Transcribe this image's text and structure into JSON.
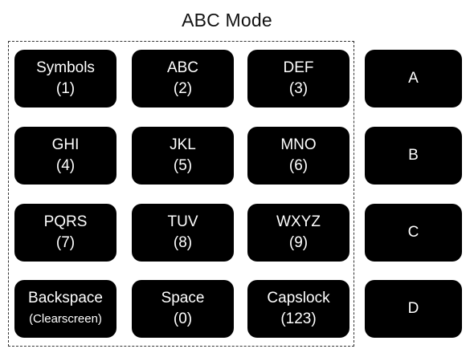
{
  "title": "ABC Mode",
  "keypad": [
    {
      "label": "Symbols",
      "sub": "(1)"
    },
    {
      "label": "ABC",
      "sub": "(2)"
    },
    {
      "label": "DEF",
      "sub": "(3)"
    },
    {
      "label": "GHI",
      "sub": "(4)"
    },
    {
      "label": "JKL",
      "sub": "(5)"
    },
    {
      "label": "MNO",
      "sub": "(6)"
    },
    {
      "label": "PQRS",
      "sub": "(7)"
    },
    {
      "label": "TUV",
      "sub": "(8)"
    },
    {
      "label": "WXYZ",
      "sub": "(9)"
    },
    {
      "label": "Backspace",
      "sub": "(Clearscreen)"
    },
    {
      "label": "Space",
      "sub": "(0)"
    },
    {
      "label": "Capslock",
      "sub": "(123)"
    }
  ],
  "side_keys": [
    "A",
    "B",
    "C",
    "D"
  ]
}
